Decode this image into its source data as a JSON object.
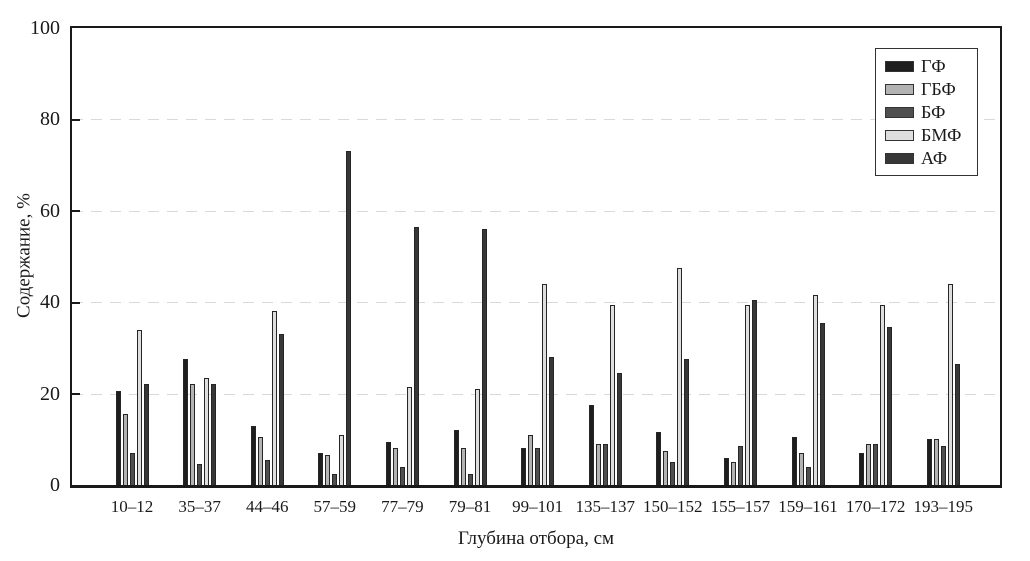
{
  "figure": {
    "background": "#ffffff",
    "frame_color": "#1a1a1a",
    "gridline_color": "#d9d9d9"
  },
  "chart_data": {
    "type": "bar",
    "title": "",
    "xlabel": "Глубина отбора, см",
    "ylabel": "Содержание, %",
    "ylim": [
      0,
      100
    ],
    "yticks": [
      0,
      20,
      40,
      60,
      80,
      100
    ],
    "grid": "horizontal dashed at 20/40/60/80",
    "legend_position": "top-right",
    "categories": [
      "10–12",
      "35–37",
      "44–46",
      "57–59",
      "77–79",
      "79–81",
      "99–101",
      "135–137",
      "150–152",
      "155–157",
      "159–161",
      "170–172",
      "193–195"
    ],
    "series": [
      {
        "name": "ГФ",
        "color": "#1e1e1e",
        "values": [
          20.5,
          27.5,
          13,
          7,
          9.5,
          12,
          8,
          17.5,
          11.5,
          6,
          10.5,
          7,
          10
        ]
      },
      {
        "name": "ГБФ",
        "color": "#b3b3b3",
        "values": [
          15.5,
          22,
          10.5,
          6.5,
          8,
          8,
          11,
          9,
          7.5,
          5,
          7,
          9,
          10
        ]
      },
      {
        "name": "БФ",
        "color": "#4f4f4f",
        "values": [
          7,
          4.5,
          5.5,
          2.5,
          4,
          2.5,
          8,
          9,
          5,
          8.5,
          4,
          9,
          8.5
        ]
      },
      {
        "name": "БМФ",
        "color": "#dedede",
        "values": [
          34,
          23.5,
          38,
          11,
          21.5,
          21,
          44,
          39.5,
          47.5,
          39.5,
          41.5,
          39.5,
          44
        ]
      },
      {
        "name": "АФ",
        "color": "#373737",
        "values": [
          22,
          22,
          33,
          73,
          56.5,
          56,
          28,
          24.5,
          27.5,
          40.5,
          35.5,
          34.5,
          26.5
        ]
      }
    ]
  }
}
